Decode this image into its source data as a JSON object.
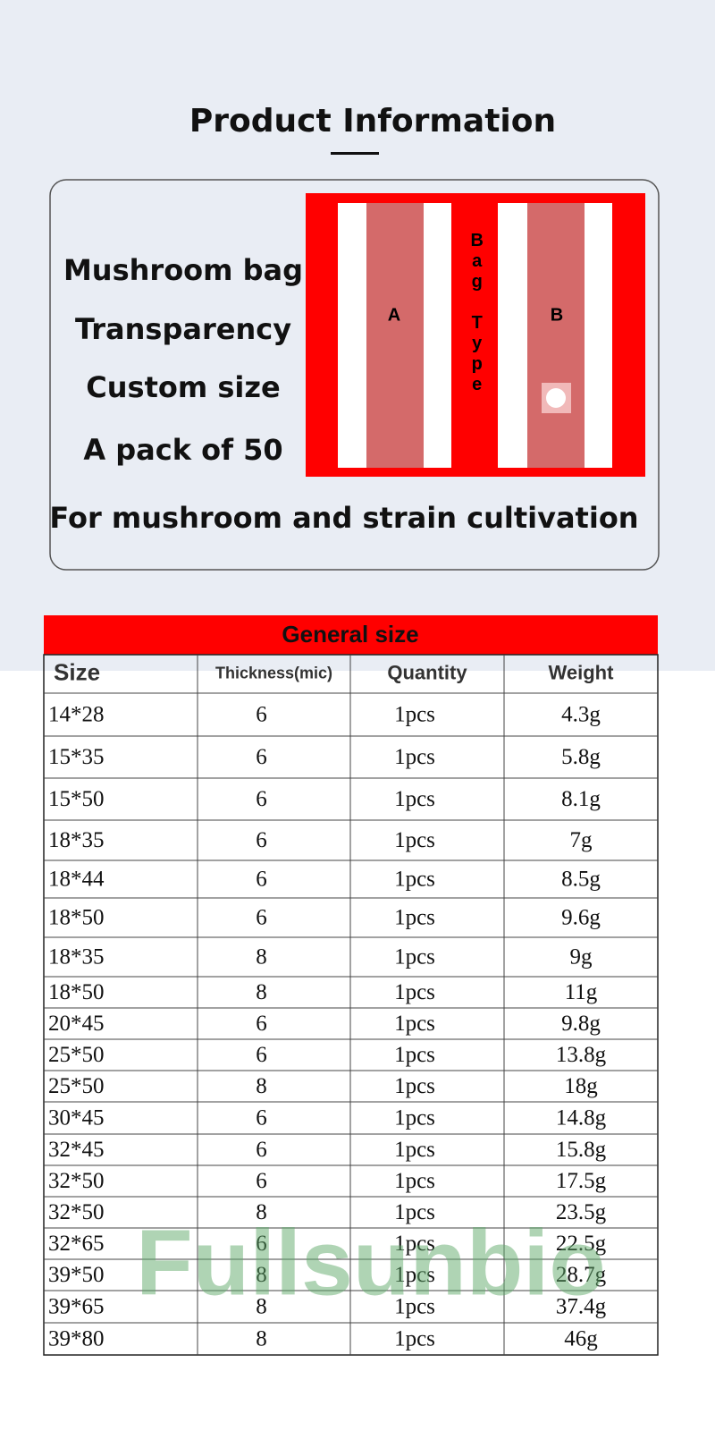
{
  "header": {
    "title": "Product Information"
  },
  "features": [
    "Mushroom bag",
    "Transparency",
    "Custom size",
    "A pack of 50"
  ],
  "usage": "For mushroom and strain cultivation",
  "diagram": {
    "label_a": "A",
    "label_b": "B",
    "side_label": "Bag Type"
  },
  "table": {
    "title": "General size",
    "headers": [
      "Size",
      "Thickness(mic)",
      "Quantity",
      "Weight"
    ],
    "rows": [
      [
        "14*28",
        "6",
        "1pcs",
        "4.3g"
      ],
      [
        "15*35",
        "6",
        "1pcs",
        "5.8g"
      ],
      [
        "15*50",
        "6",
        "1pcs",
        "8.1g"
      ],
      [
        "18*35",
        "6",
        "1pcs",
        "7g"
      ],
      [
        "18*44",
        "6",
        "1pcs",
        "8.5g"
      ],
      [
        "18*50",
        "6",
        "1pcs",
        "9.6g"
      ],
      [
        "18*35",
        "8",
        "1pcs",
        "9g"
      ],
      [
        "18*50",
        "8",
        "1pcs",
        "11g"
      ],
      [
        "20*45",
        "6",
        "1pcs",
        "9.8g"
      ],
      [
        "25*50",
        "6",
        "1pcs",
        "13.8g"
      ],
      [
        "25*50",
        "8",
        "1pcs",
        "18g"
      ],
      [
        "30*45",
        "6",
        "1pcs",
        "14.8g"
      ],
      [
        "32*45",
        "6",
        "1pcs",
        "15.8g"
      ],
      [
        "32*50",
        "6",
        "1pcs",
        "17.5g"
      ],
      [
        "32*50",
        "8",
        "1pcs",
        "23.5g"
      ],
      [
        "32*65",
        "6",
        "1pcs",
        "22.5g"
      ],
      [
        "39*50",
        "8",
        "1pcs",
        "28.7g"
      ],
      [
        "39*65",
        "8",
        "1pcs",
        "37.4g"
      ],
      [
        "39*80",
        "8",
        "1pcs",
        "46g"
      ]
    ]
  },
  "watermark": "Fullsunbio"
}
